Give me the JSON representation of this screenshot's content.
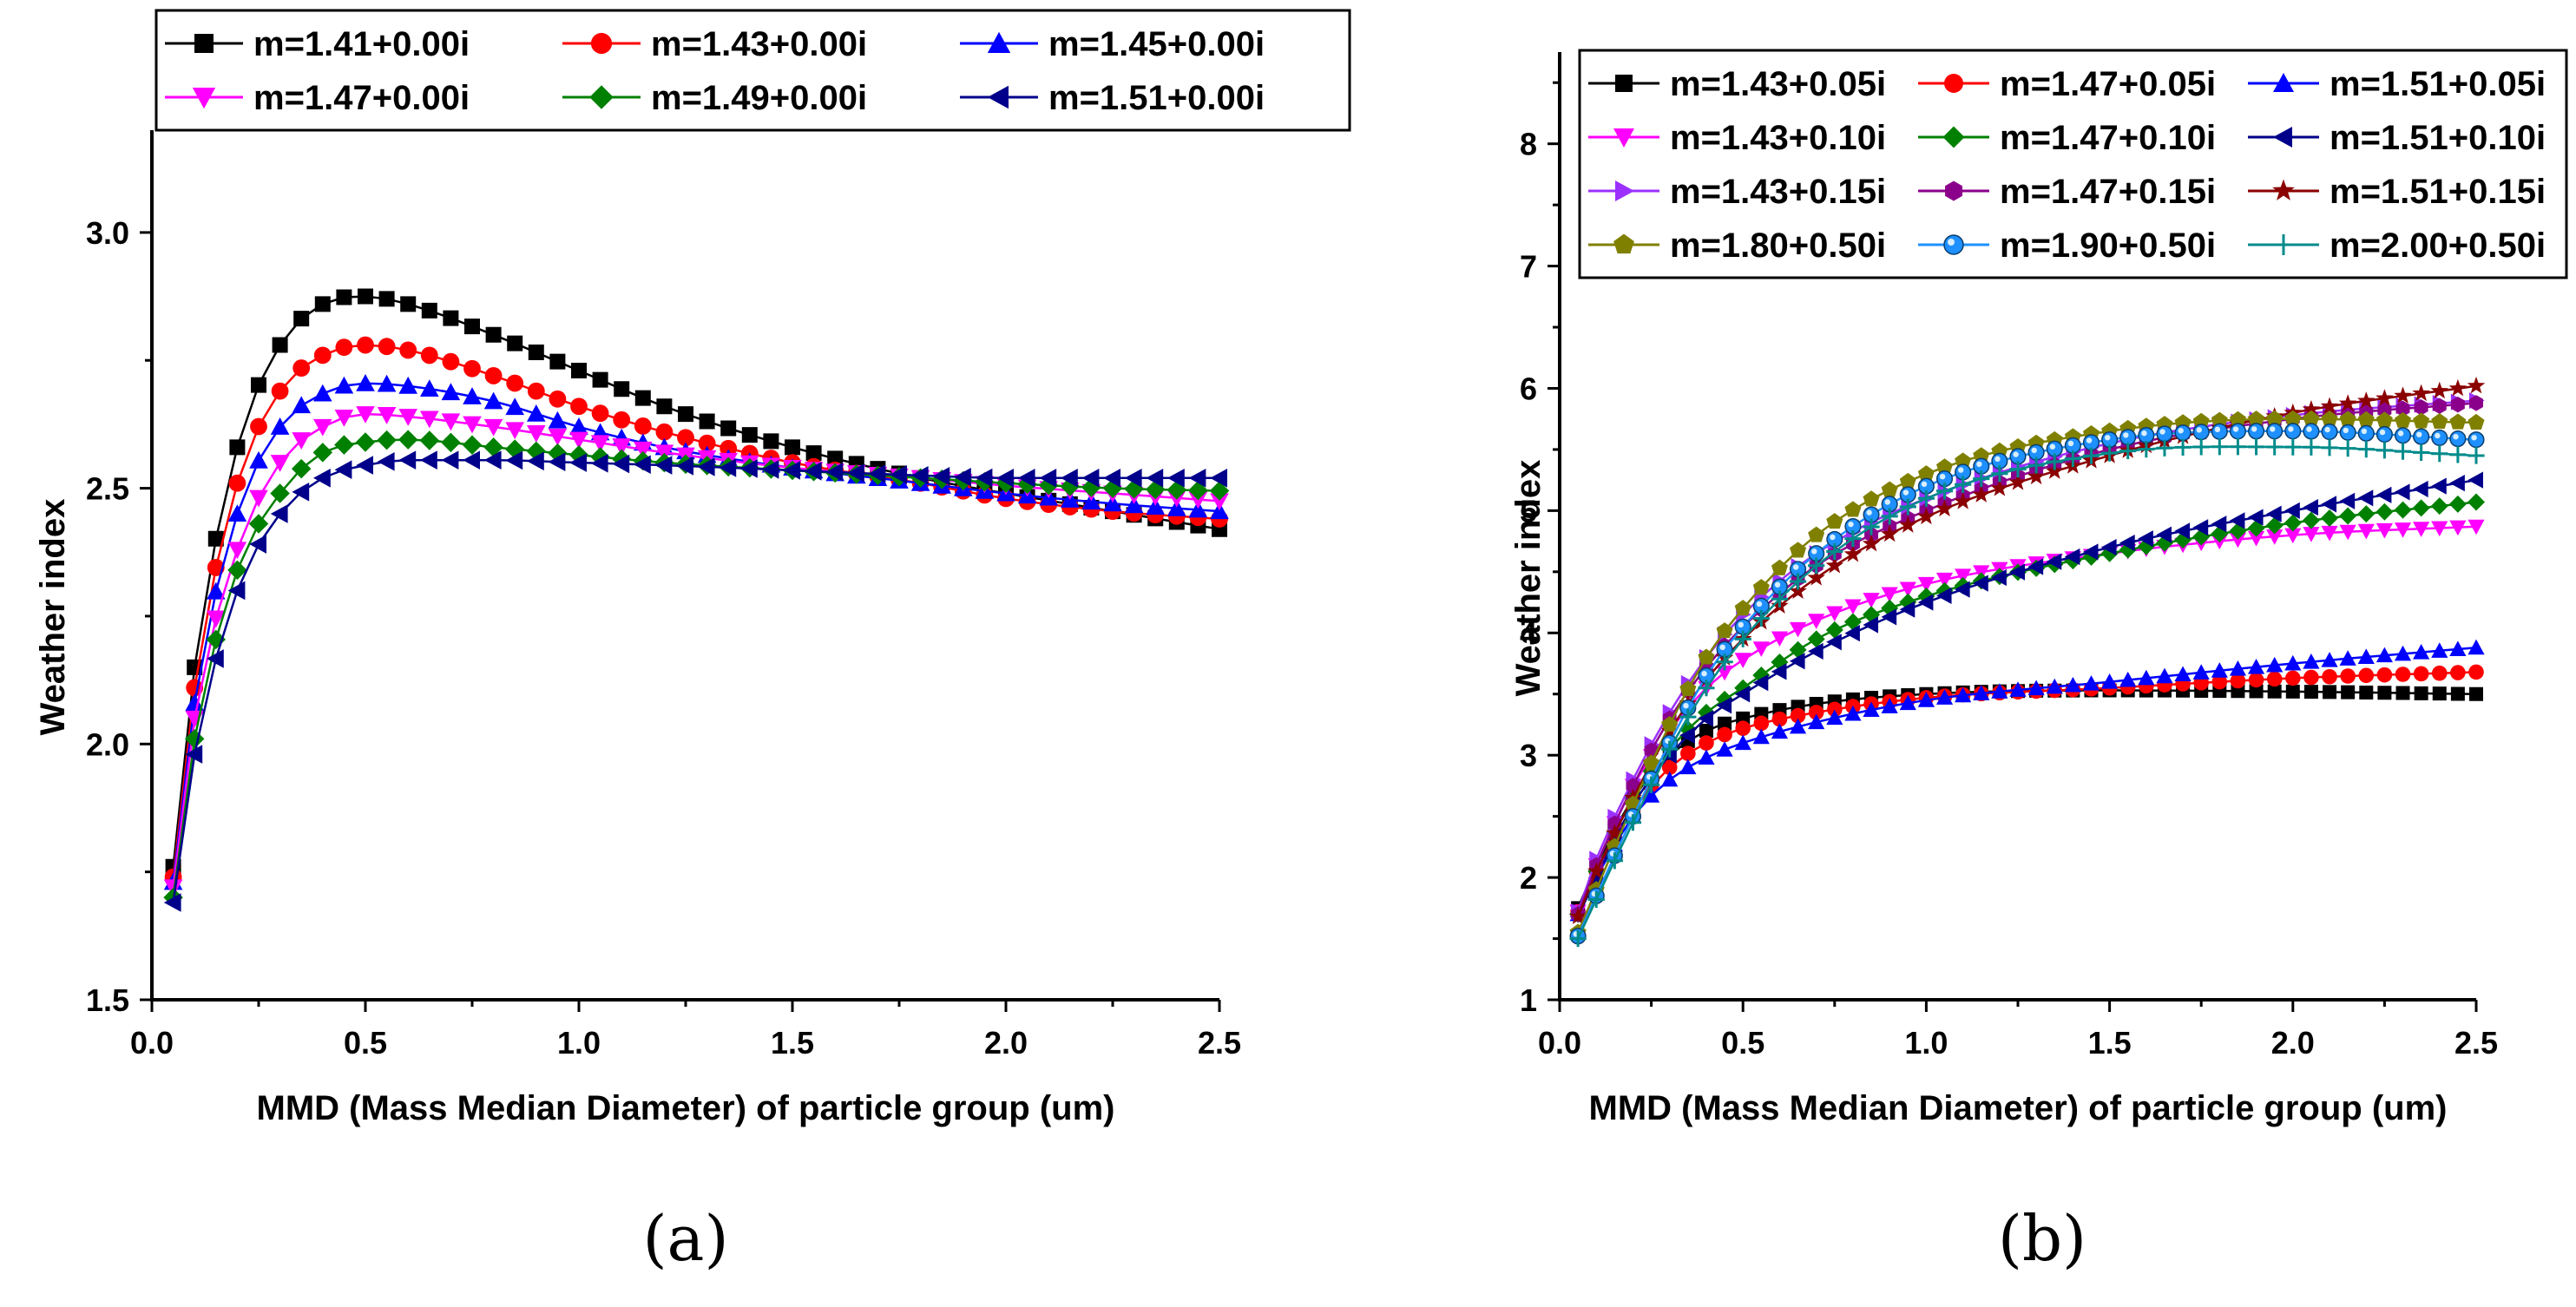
{
  "figure": {
    "label_a": "(a)",
    "label_b": "(b)"
  },
  "chart_data": [
    {
      "type": "line",
      "title": "",
      "xlabel": "MMD (Mass Median Diameter) of particle group (um)",
      "ylabel": "Weather index",
      "xlim": [
        0,
        2.5
      ],
      "ylim": [
        1.5,
        3.2
      ],
      "xticks": [
        "0.0",
        "0.5",
        "1.0",
        "1.5",
        "2.0",
        "2.5"
      ],
      "yticks": [
        "1.5",
        "2.0",
        "2.5",
        "3.0"
      ],
      "legend_position": "top",
      "series": [
        {
          "name": "m=1.41+0.00i",
          "color": "#000000",
          "marker": "square",
          "points": [
            [
              0.05,
              1.76
            ],
            [
              0.1,
              2.15
            ],
            [
              0.2,
              2.58
            ],
            [
              0.3,
              2.78
            ],
            [
              0.4,
              2.86
            ],
            [
              0.5,
              2.875
            ],
            [
              0.6,
              2.86
            ],
            [
              0.8,
              2.8
            ],
            [
              1.0,
              2.73
            ],
            [
              1.2,
              2.66
            ],
            [
              1.5,
              2.58
            ],
            [
              1.8,
              2.52
            ],
            [
              2.0,
              2.49
            ],
            [
              2.25,
              2.455
            ],
            [
              2.5,
              2.42
            ]
          ]
        },
        {
          "name": "m=1.43+0.00i",
          "color": "#ff0000",
          "marker": "circle",
          "points": [
            [
              0.05,
              1.74
            ],
            [
              0.1,
              2.11
            ],
            [
              0.2,
              2.51
            ],
            [
              0.3,
              2.69
            ],
            [
              0.4,
              2.76
            ],
            [
              0.5,
              2.78
            ],
            [
              0.6,
              2.77
            ],
            [
              0.8,
              2.72
            ],
            [
              1.0,
              2.66
            ],
            [
              1.2,
              2.61
            ],
            [
              1.5,
              2.55
            ],
            [
              1.8,
              2.51
            ],
            [
              2.0,
              2.48
            ],
            [
              2.25,
              2.455
            ],
            [
              2.5,
              2.44
            ]
          ]
        },
        {
          "name": "m=1.45+0.00i",
          "color": "#0000ff",
          "marker": "triangle-up",
          "points": [
            [
              0.05,
              1.73
            ],
            [
              0.1,
              2.08
            ],
            [
              0.2,
              2.45
            ],
            [
              0.3,
              2.62
            ],
            [
              0.4,
              2.685
            ],
            [
              0.5,
              2.705
            ],
            [
              0.6,
              2.7
            ],
            [
              0.8,
              2.67
            ],
            [
              1.0,
              2.62
            ],
            [
              1.2,
              2.58
            ],
            [
              1.5,
              2.54
            ],
            [
              1.8,
              2.51
            ],
            [
              2.0,
              2.49
            ],
            [
              2.25,
              2.47
            ],
            [
              2.5,
              2.455
            ]
          ]
        },
        {
          "name": "m=1.47+0.00i",
          "color": "#ff00ff",
          "marker": "triangle-down",
          "points": [
            [
              0.05,
              1.72
            ],
            [
              0.1,
              2.05
            ],
            [
              0.2,
              2.38
            ],
            [
              0.3,
              2.55
            ],
            [
              0.4,
              2.62
            ],
            [
              0.5,
              2.645
            ],
            [
              0.6,
              2.64
            ],
            [
              0.8,
              2.62
            ],
            [
              1.0,
              2.595
            ],
            [
              1.2,
              2.57
            ],
            [
              1.5,
              2.54
            ],
            [
              1.8,
              2.52
            ],
            [
              2.0,
              2.505
            ],
            [
              2.25,
              2.49
            ],
            [
              2.5,
              2.475
            ]
          ]
        },
        {
          "name": "m=1.49+0.00i",
          "color": "#008000",
          "marker": "diamond",
          "points": [
            [
              0.05,
              1.7
            ],
            [
              0.1,
              2.01
            ],
            [
              0.2,
              2.34
            ],
            [
              0.3,
              2.49
            ],
            [
              0.4,
              2.57
            ],
            [
              0.5,
              2.59
            ],
            [
              0.6,
              2.595
            ],
            [
              0.8,
              2.58
            ],
            [
              1.0,
              2.565
            ],
            [
              1.2,
              2.55
            ],
            [
              1.5,
              2.535
            ],
            [
              1.8,
              2.52
            ],
            [
              2.0,
              2.51
            ],
            [
              2.25,
              2.5
            ],
            [
              2.5,
              2.495
            ]
          ]
        },
        {
          "name": "m=1.51+0.00i",
          "color": "#00008b",
          "marker": "triangle-left",
          "points": [
            [
              0.05,
              1.69
            ],
            [
              0.1,
              1.98
            ],
            [
              0.2,
              2.3
            ],
            [
              0.3,
              2.45
            ],
            [
              0.4,
              2.52
            ],
            [
              0.5,
              2.545
            ],
            [
              0.6,
              2.555
            ],
            [
              0.8,
              2.555
            ],
            [
              1.0,
              2.55
            ],
            [
              1.2,
              2.545
            ],
            [
              1.5,
              2.535
            ],
            [
              1.8,
              2.525
            ],
            [
              2.0,
              2.52
            ],
            [
              2.25,
              2.52
            ],
            [
              2.5,
              2.52
            ]
          ]
        }
      ]
    },
    {
      "type": "line",
      "title": "",
      "xlabel": "MMD (Mass Median Diameter) of particle group (um)",
      "ylabel": "Weather index",
      "xlim": [
        0,
        2.5
      ],
      "ylim": [
        1,
        8.75
      ],
      "xticks": [
        "0.0",
        "0.5",
        "1.0",
        "1.5",
        "2.0",
        "2.5"
      ],
      "yticks": [
        "1",
        "2",
        "3",
        "4",
        "5",
        "6",
        "7",
        "8"
      ],
      "legend_position": "top",
      "series": [
        {
          "name": "m=1.43+0.05i",
          "color": "#000000",
          "marker": "square",
          "points": [
            [
              0.05,
              1.75
            ],
            [
              0.1,
              2.1
            ],
            [
              0.2,
              2.65
            ],
            [
              0.3,
              3.0
            ],
            [
              0.4,
              3.2
            ],
            [
              0.5,
              3.3
            ],
            [
              0.7,
              3.42
            ],
            [
              1.0,
              3.5
            ],
            [
              1.5,
              3.53
            ],
            [
              2.0,
              3.52
            ],
            [
              2.5,
              3.5
            ]
          ]
        },
        {
          "name": "m=1.47+0.05i",
          "color": "#ff0000",
          "marker": "circle",
          "points": [
            [
              0.05,
              1.72
            ],
            [
              0.1,
              2.05
            ],
            [
              0.2,
              2.55
            ],
            [
              0.3,
              2.9
            ],
            [
              0.4,
              3.1
            ],
            [
              0.5,
              3.22
            ],
            [
              0.7,
              3.35
            ],
            [
              1.0,
              3.47
            ],
            [
              1.5,
              3.55
            ],
            [
              2.0,
              3.63
            ],
            [
              2.5,
              3.68
            ]
          ]
        },
        {
          "name": "m=1.51+0.05i",
          "color": "#0000ff",
          "marker": "triangle-up",
          "points": [
            [
              0.05,
              1.7
            ],
            [
              0.1,
              2.0
            ],
            [
              0.2,
              2.5
            ],
            [
              0.3,
              2.8
            ],
            [
              0.4,
              2.98
            ],
            [
              0.5,
              3.1
            ],
            [
              0.7,
              3.27
            ],
            [
              1.0,
              3.45
            ],
            [
              1.5,
              3.6
            ],
            [
              2.0,
              3.75
            ],
            [
              2.5,
              3.88
            ]
          ]
        },
        {
          "name": "m=1.43+0.10i",
          "color": "#ff00ff",
          "marker": "triangle-down",
          "points": [
            [
              0.05,
              1.72
            ],
            [
              0.1,
              2.1
            ],
            [
              0.2,
              2.75
            ],
            [
              0.3,
              3.2
            ],
            [
              0.4,
              3.55
            ],
            [
              0.5,
              3.78
            ],
            [
              0.7,
              4.1
            ],
            [
              1.0,
              4.4
            ],
            [
              1.5,
              4.65
            ],
            [
              2.0,
              4.8
            ],
            [
              2.5,
              4.87
            ]
          ]
        },
        {
          "name": "m=1.47+0.10i",
          "color": "#008000",
          "marker": "diamond",
          "points": [
            [
              0.05,
              1.7
            ],
            [
              0.1,
              2.05
            ],
            [
              0.2,
              2.65
            ],
            [
              0.3,
              3.05
            ],
            [
              0.4,
              3.35
            ],
            [
              0.5,
              3.55
            ],
            [
              0.7,
              3.95
            ],
            [
              1.0,
              4.3
            ],
            [
              1.5,
              4.65
            ],
            [
              2.0,
              4.9
            ],
            [
              2.5,
              5.07
            ]
          ]
        },
        {
          "name": "m=1.51+0.10i",
          "color": "#00008b",
          "marker": "triangle-left",
          "points": [
            [
              0.05,
              1.68
            ],
            [
              0.1,
              2.0
            ],
            [
              0.2,
              2.6
            ],
            [
              0.3,
              3.0
            ],
            [
              0.4,
              3.3
            ],
            [
              0.5,
              3.5
            ],
            [
              0.7,
              3.85
            ],
            [
              1.0,
              4.25
            ],
            [
              1.5,
              4.7
            ],
            [
              2.0,
              5.0
            ],
            [
              2.5,
              5.25
            ]
          ]
        },
        {
          "name": "m=1.43+0.15i",
          "color": "#9b30ff",
          "marker": "triangle-right",
          "points": [
            [
              0.05,
              1.72
            ],
            [
              0.1,
              2.15
            ],
            [
              0.2,
              2.8
            ],
            [
              0.3,
              3.35
            ],
            [
              0.4,
              3.8
            ],
            [
              0.5,
              4.15
            ],
            [
              0.7,
              4.65
            ],
            [
              1.0,
              5.1
            ],
            [
              1.5,
              5.55
            ],
            [
              2.0,
              5.78
            ],
            [
              2.5,
              5.9
            ]
          ]
        },
        {
          "name": "m=1.47+0.15i",
          "color": "#8b008b",
          "marker": "hexagon",
          "points": [
            [
              0.05,
              1.7
            ],
            [
              0.1,
              2.1
            ],
            [
              0.2,
              2.75
            ],
            [
              0.3,
              3.3
            ],
            [
              0.4,
              3.72
            ],
            [
              0.5,
              4.05
            ],
            [
              0.7,
              4.55
            ],
            [
              1.0,
              5.0
            ],
            [
              1.5,
              5.5
            ],
            [
              2.0,
              5.75
            ],
            [
              2.5,
              5.88
            ]
          ]
        },
        {
          "name": "m=1.51+0.15i",
          "color": "#8b0000",
          "marker": "star",
          "points": [
            [
              0.05,
              1.68
            ],
            [
              0.1,
              2.05
            ],
            [
              0.2,
              2.65
            ],
            [
              0.3,
              3.2
            ],
            [
              0.4,
              3.62
            ],
            [
              0.5,
              3.95
            ],
            [
              0.7,
              4.45
            ],
            [
              1.0,
              4.95
            ],
            [
              1.5,
              5.45
            ],
            [
              2.0,
              5.8
            ],
            [
              2.5,
              6.02
            ]
          ]
        },
        {
          "name": "m=1.80+0.50i",
          "color": "#808000",
          "marker": "pentagon",
          "points": [
            [
              0.05,
              1.55
            ],
            [
              0.1,
              1.9
            ],
            [
              0.2,
              2.6
            ],
            [
              0.3,
              3.25
            ],
            [
              0.4,
              3.8
            ],
            [
              0.5,
              4.2
            ],
            [
              0.7,
              4.8
            ],
            [
              1.0,
              5.3
            ],
            [
              1.5,
              5.65
            ],
            [
              2.0,
              5.75
            ],
            [
              2.5,
              5.72
            ]
          ]
        },
        {
          "name": "m=1.90+0.50i",
          "color": "#1e90ff",
          "marker": "ball",
          "points": [
            [
              0.05,
              1.52
            ],
            [
              0.1,
              1.85
            ],
            [
              0.2,
              2.5
            ],
            [
              0.3,
              3.1
            ],
            [
              0.4,
              3.65
            ],
            [
              0.5,
              4.05
            ],
            [
              0.7,
              4.65
            ],
            [
              1.0,
              5.2
            ],
            [
              1.5,
              5.58
            ],
            [
              2.0,
              5.65
            ],
            [
              2.5,
              5.58
            ]
          ]
        },
        {
          "name": "m=2.00+0.50i",
          "color": "#008b8b",
          "marker": "plus",
          "points": [
            [
              0.05,
              1.5
            ],
            [
              0.1,
              1.82
            ],
            [
              0.2,
              2.45
            ],
            [
              0.3,
              3.05
            ],
            [
              0.4,
              3.55
            ],
            [
              0.5,
              3.95
            ],
            [
              0.7,
              4.55
            ],
            [
              1.0,
              5.1
            ],
            [
              1.5,
              5.47
            ],
            [
              2.0,
              5.52
            ],
            [
              2.5,
              5.45
            ]
          ]
        }
      ]
    }
  ]
}
